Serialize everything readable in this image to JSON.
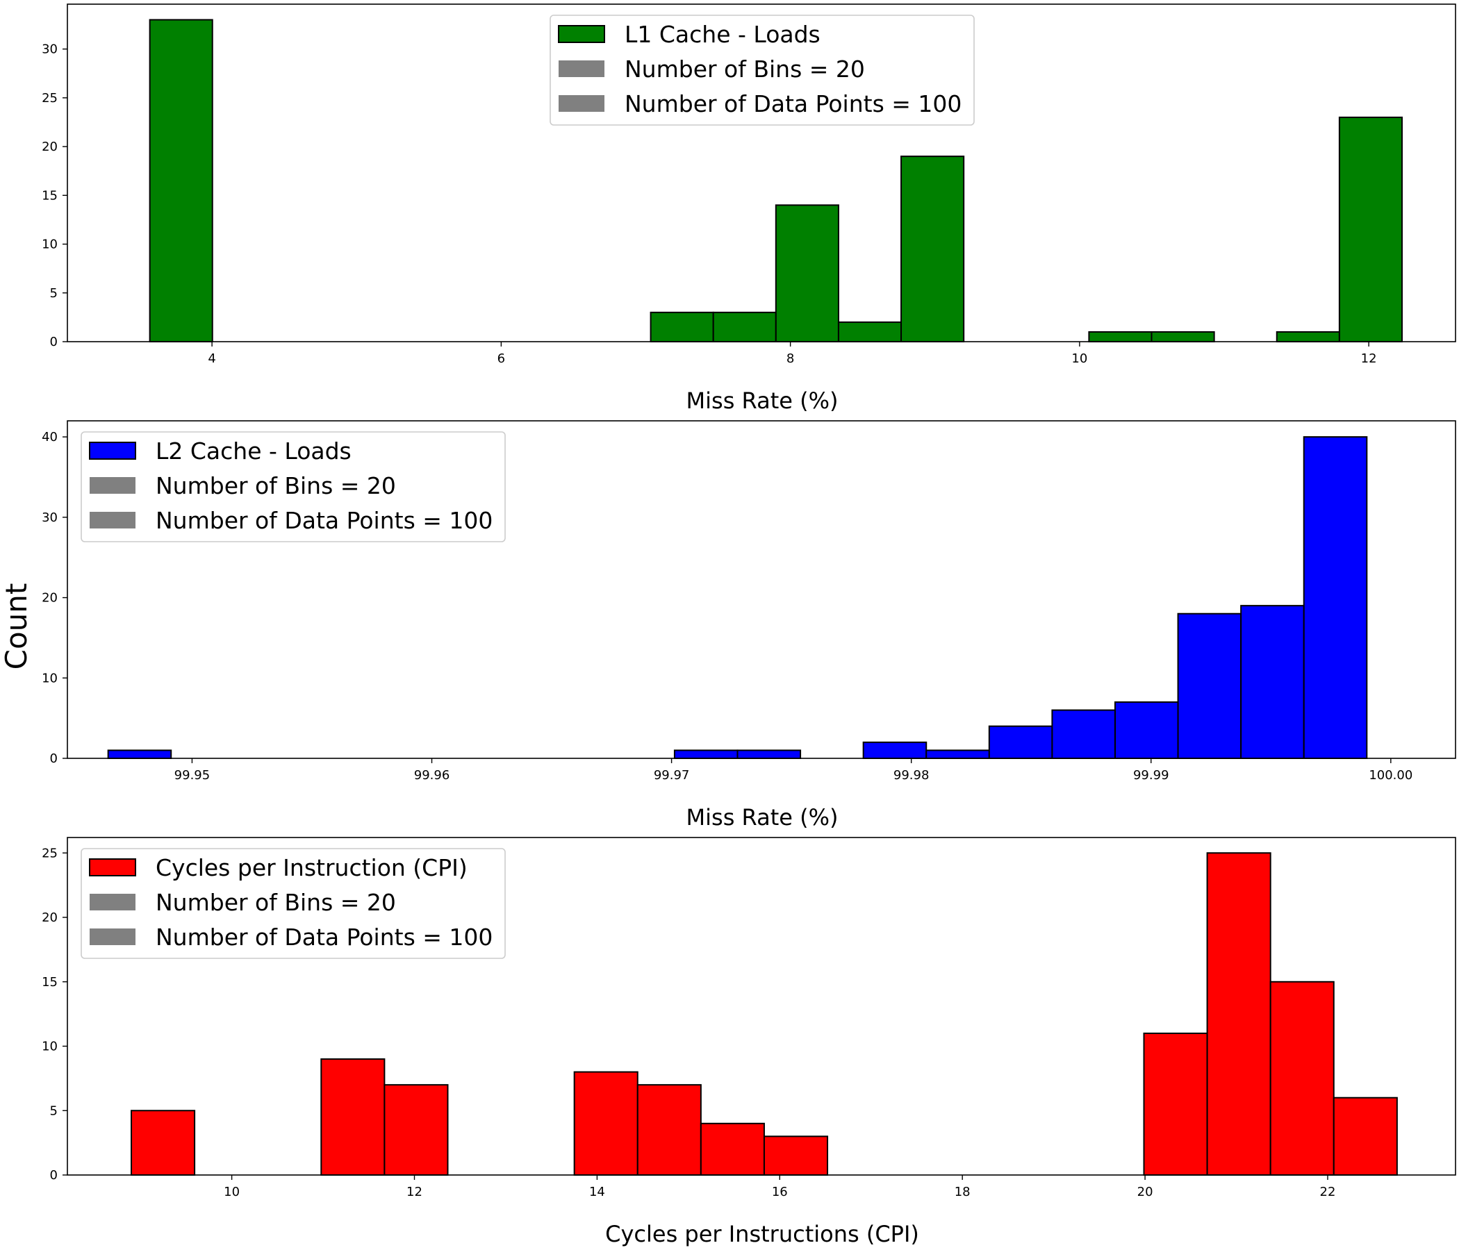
{
  "figure": {
    "ylabel": "Count"
  },
  "chart_data": [
    {
      "type": "bar",
      "xlabel": "Miss Rate (%)",
      "ylabel": "Count",
      "xlim": [
        3.0,
        12.6
      ],
      "ylim": [
        0,
        34.6
      ],
      "xticks": [
        {
          "v": 4,
          "label": "4"
        },
        {
          "v": 6,
          "label": "6"
        },
        {
          "v": 8,
          "label": "8"
        },
        {
          "v": 10,
          "label": "10"
        },
        {
          "v": 12,
          "label": "12"
        }
      ],
      "yticks": [
        {
          "v": 0,
          "label": "0"
        },
        {
          "v": 5,
          "label": "5"
        },
        {
          "v": 10,
          "label": "10"
        },
        {
          "v": 15,
          "label": "15"
        },
        {
          "v": 20,
          "label": "20"
        },
        {
          "v": 25,
          "label": "25"
        },
        {
          "v": 30,
          "label": "30"
        }
      ],
      "bins": {
        "start": 3.57,
        "width": 0.433,
        "count": 20
      },
      "values": [
        33,
        0,
        0,
        0,
        0,
        0,
        0,
        0,
        3,
        3,
        14,
        2,
        19,
        0,
        0,
        1,
        1,
        0,
        1,
        23
      ],
      "color": "#008000",
      "legend": {
        "position": "top-center",
        "entries": [
          {
            "label": "L1 Cache - Loads",
            "color": "#008000",
            "outline": true
          },
          {
            "label": "Number of Bins = 20",
            "color": "#808080",
            "outline": false
          },
          {
            "label": "Number of Data Points = 100",
            "color": "#808080",
            "outline": false
          }
        ]
      }
    },
    {
      "type": "bar",
      "xlabel": "Miss Rate (%)",
      "ylabel": "Count",
      "xlim": [
        99.9448,
        100.0027
      ],
      "ylim": [
        0,
        42
      ],
      "xticks": [
        {
          "v": 99.95,
          "label": "99.95"
        },
        {
          "v": 99.96,
          "label": "99.96"
        },
        {
          "v": 99.97,
          "label": "99.97"
        },
        {
          "v": 99.98,
          "label": "99.98"
        },
        {
          "v": 99.99,
          "label": "99.99"
        },
        {
          "v": 100.0,
          "label": "100.00"
        }
      ],
      "yticks": [
        {
          "v": 0,
          "label": "0"
        },
        {
          "v": 10,
          "label": "10"
        },
        {
          "v": 20,
          "label": "20"
        },
        {
          "v": 30,
          "label": "30"
        },
        {
          "v": 40,
          "label": "40"
        }
      ],
      "bins": {
        "start": 99.9465,
        "width": 0.002625,
        "count": 20
      },
      "values": [
        1,
        0,
        0,
        0,
        0,
        0,
        0,
        0,
        0,
        1,
        1,
        0,
        2,
        1,
        4,
        6,
        7,
        18,
        19,
        40
      ],
      "color": "#0000ff",
      "legend": {
        "position": "top-left",
        "entries": [
          {
            "label": "L2 Cache - Loads",
            "color": "#0000ff",
            "outline": true
          },
          {
            "label": "Number of Bins = 20",
            "color": "#808080",
            "outline": false
          },
          {
            "label": "Number of Data Points = 100",
            "color": "#808080",
            "outline": false
          }
        ]
      }
    },
    {
      "type": "bar",
      "xlabel": "Cycles per Instructions (CPI)",
      "ylabel": "Count",
      "xlim": [
        8.2,
        23.4
      ],
      "ylim": [
        0,
        26.2
      ],
      "xticks": [
        {
          "v": 10,
          "label": "10"
        },
        {
          "v": 12,
          "label": "12"
        },
        {
          "v": 14,
          "label": "14"
        },
        {
          "v": 16,
          "label": "16"
        },
        {
          "v": 18,
          "label": "18"
        },
        {
          "v": 20,
          "label": "20"
        },
        {
          "v": 22,
          "label": "22"
        }
      ],
      "yticks": [
        {
          "v": 0,
          "label": "0"
        },
        {
          "v": 5,
          "label": "5"
        },
        {
          "v": 10,
          "label": "10"
        },
        {
          "v": 15,
          "label": "15"
        },
        {
          "v": 20,
          "label": "20"
        },
        {
          "v": 25,
          "label": "25"
        }
      ],
      "bins": {
        "start": 8.9,
        "width": 0.693,
        "count": 20
      },
      "values": [
        5,
        0,
        0,
        9,
        7,
        0,
        0,
        8,
        7,
        4,
        3,
        0,
        0,
        0,
        0,
        0,
        11,
        25,
        15,
        6
      ],
      "color": "#ff0000",
      "legend": {
        "position": "top-left",
        "entries": [
          {
            "label": "Cycles per Instruction (CPI)",
            "color": "#ff0000",
            "outline": true
          },
          {
            "label": "Number of Bins = 20",
            "color": "#808080",
            "outline": false
          },
          {
            "label": "Number of Data Points = 100",
            "color": "#808080",
            "outline": false
          }
        ]
      }
    }
  ]
}
